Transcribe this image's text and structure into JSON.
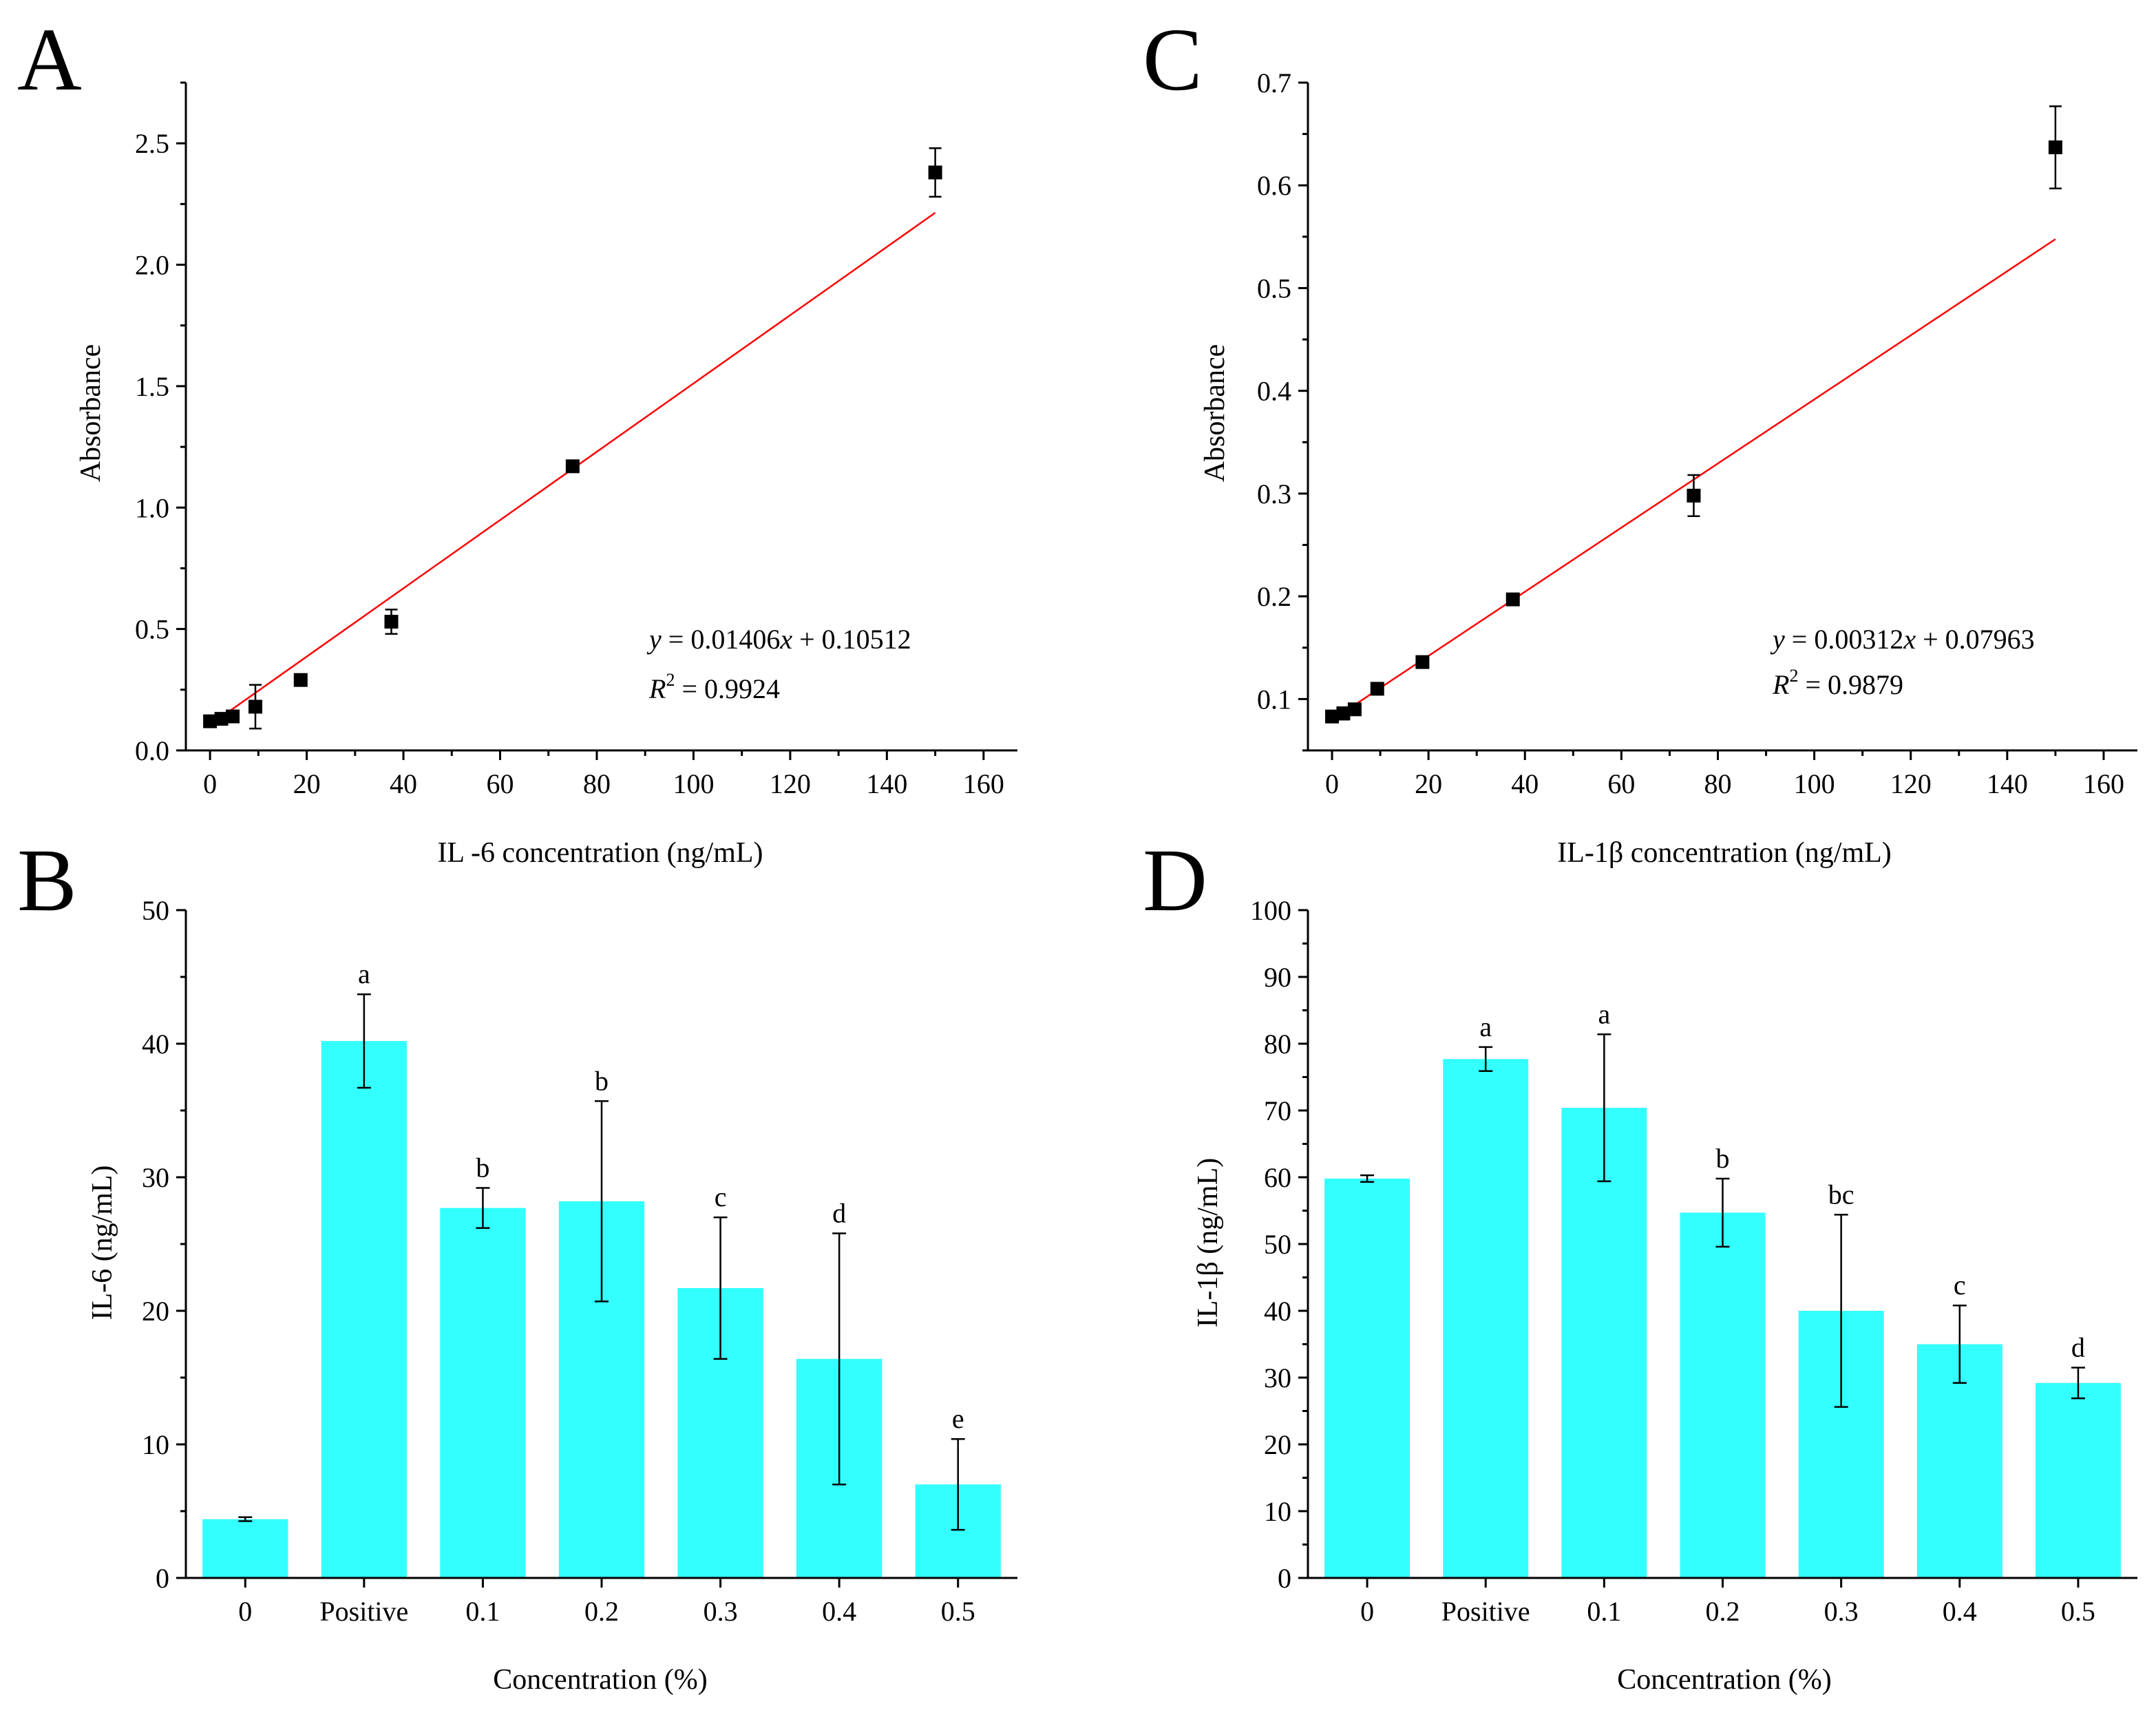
{
  "chart_data": [
    {
      "panel": "A",
      "type": "scatter",
      "xlabel": "IL -6 concentration (ng/mL)",
      "ylabel": "Absorbance",
      "xlim": [
        -5,
        167
      ],
      "ylim": [
        0,
        2.75
      ],
      "xticks": [
        0,
        20,
        40,
        60,
        80,
        100,
        120,
        140,
        160
      ],
      "yticks": [
        0.0,
        0.5,
        1.0,
        1.5,
        2.0,
        2.5
      ],
      "ytick_labels": [
        "0.0",
        "0.5",
        "1.0",
        "1.5",
        "2.0",
        "2.5"
      ],
      "points": [
        {
          "x": 0,
          "y": 0.12,
          "err": 0.01
        },
        {
          "x": 2.34,
          "y": 0.13,
          "err": 0.01
        },
        {
          "x": 4.69,
          "y": 0.14,
          "err": 0.01
        },
        {
          "x": 9.38,
          "y": 0.18,
          "err": 0.09
        },
        {
          "x": 18.75,
          "y": 0.29,
          "err": 0.02
        },
        {
          "x": 37.5,
          "y": 0.53,
          "err": 0.05
        },
        {
          "x": 75,
          "y": 1.17,
          "err": 0.01
        },
        {
          "x": 150,
          "y": 2.38,
          "err": 0.1
        }
      ],
      "fit": {
        "slope": 0.01406,
        "intercept": 0.10512,
        "x_range": [
          0,
          150
        ],
        "color": "#ff0000"
      },
      "equation_var": "y",
      "equation_rest": " = 0.01406",
      "equation_x": "x",
      "equation_tail": " + 0.10512",
      "r2_var": "R",
      "r2_sup": "2",
      "r2_rest": " = 0.9924"
    },
    {
      "panel": "B",
      "type": "bar",
      "xlabel": "Concentration (%)",
      "ylabel": "IL-6 (ng/mL)",
      "ylim": [
        0,
        50
      ],
      "yticks": [
        0,
        10,
        20,
        30,
        40,
        50
      ],
      "categories": [
        "0",
        "Positive",
        "0.1",
        "0.2",
        "0.3",
        "0.4",
        "0.5"
      ],
      "values": [
        4.4,
        40.2,
        27.7,
        28.2,
        21.7,
        16.4,
        7.0
      ],
      "errors": [
        0.15,
        3.5,
        1.5,
        7.5,
        5.3,
        9.4,
        3.4
      ],
      "letters": [
        "",
        "a",
        "b",
        "b",
        "c",
        "d",
        "e"
      ],
      "color": "#33ffff"
    },
    {
      "panel": "C",
      "type": "scatter",
      "xlabel": "IL-1β concentration (ng/mL)",
      "ylabel": "Absorbance",
      "xlim": [
        -5,
        167
      ],
      "ylim": [
        0.05,
        0.7
      ],
      "xticks": [
        0,
        20,
        40,
        60,
        80,
        100,
        120,
        140,
        160
      ],
      "yticks": [
        0.1,
        0.2,
        0.3,
        0.4,
        0.5,
        0.6,
        0.7
      ],
      "ytick_labels": [
        "0.1",
        "0.2",
        "0.3",
        "0.4",
        "0.5",
        "0.6",
        "0.7"
      ],
      "points": [
        {
          "x": 0,
          "y": 0.083,
          "err": 0.003
        },
        {
          "x": 2.34,
          "y": 0.086,
          "err": 0.006
        },
        {
          "x": 4.69,
          "y": 0.09,
          "err": 0.004
        },
        {
          "x": 9.38,
          "y": 0.11,
          "err": 0.003
        },
        {
          "x": 18.75,
          "y": 0.136,
          "err": 0.002
        },
        {
          "x": 37.5,
          "y": 0.197,
          "err": 0.002
        },
        {
          "x": 75,
          "y": 0.298,
          "err": 0.02
        },
        {
          "x": 150,
          "y": 0.637,
          "err": 0.04
        }
      ],
      "fit": {
        "slope": 0.00312,
        "intercept": 0.07963,
        "x_range": [
          0,
          150
        ],
        "color": "#ff0000"
      },
      "equation_var": "y",
      "equation_rest": " = 0.00312",
      "equation_x": "x",
      "equation_tail": " + 0.07963",
      "r2_var": "R",
      "r2_sup": "2",
      "r2_rest": " = 0.9879"
    },
    {
      "panel": "D",
      "type": "bar",
      "xlabel": "Concentration (%)",
      "ylabel": "IL-1β (ng/mL)",
      "ylim": [
        0,
        100
      ],
      "yticks": [
        0,
        10,
        20,
        30,
        40,
        50,
        60,
        70,
        80,
        90,
        100
      ],
      "categories": [
        "0",
        "Positive",
        "0.1",
        "0.2",
        "0.3",
        "0.4",
        "0.5"
      ],
      "values": [
        59.8,
        77.7,
        70.4,
        54.7,
        40.0,
        35.0,
        29.2
      ],
      "errors": [
        0.5,
        1.8,
        11.0,
        5.1,
        14.4,
        5.8,
        2.3
      ],
      "letters": [
        "",
        "a",
        "a",
        "b",
        "bc",
        "c",
        "d"
      ],
      "color": "#33ffff"
    }
  ]
}
